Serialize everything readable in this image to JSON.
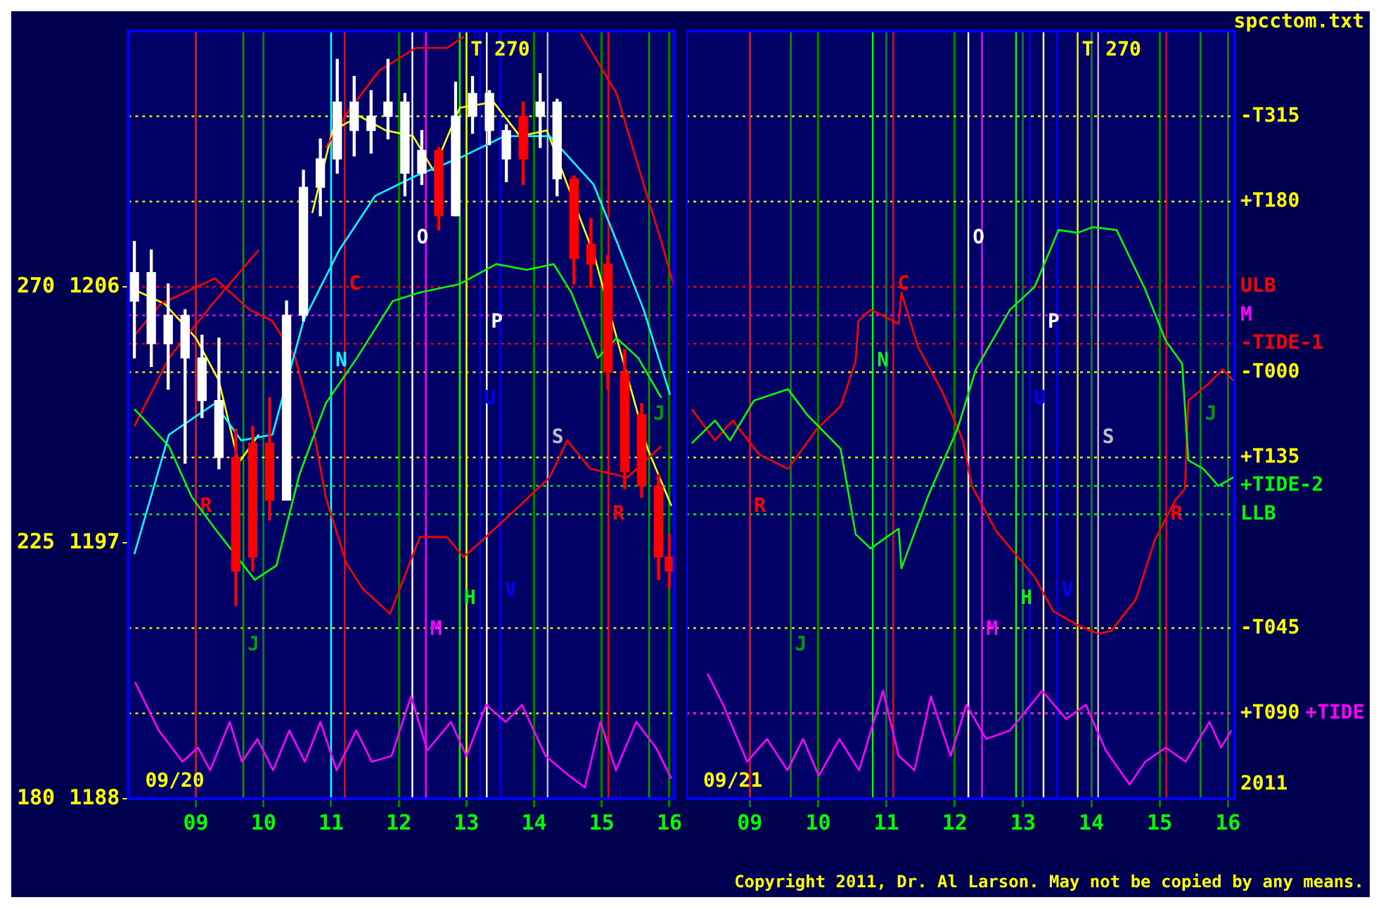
{
  "chart_data": [
    {
      "type": "candlestick",
      "x": [
        8.09,
        8.34,
        8.59,
        8.84,
        9.09,
        9.34,
        9.59,
        9.84,
        10.09,
        10.34,
        10.59,
        10.84,
        11.09,
        11.34,
        11.59,
        11.84,
        12.09,
        12.34,
        12.59,
        12.84,
        13.09,
        13.34,
        13.59,
        13.84,
        14.09,
        14.34,
        14.59,
        14.84,
        15.09,
        15.34,
        15.59,
        15.84,
        16.0
      ],
      "ohlc": [
        [
          1205.5,
          1207.6,
          1203.5,
          1206.5
        ],
        [
          1204.0,
          1207.3,
          1203.2,
          1206.5
        ],
        [
          1204.0,
          1206.1,
          1202.4,
          1205.0
        ],
        [
          1203.5,
          1205.2,
          1199.8,
          1205.0
        ],
        [
          1202.0,
          1204.3,
          1201.4,
          1203.5
        ],
        [
          1200.0,
          1204.2,
          1199.6,
          1202.0
        ],
        [
          1200.0,
          1201.0,
          1194.8,
          1196.0
        ],
        [
          1200.5,
          1201.1,
          1196.0,
          1196.5
        ],
        [
          1200.5,
          1202.1,
          1197.8,
          1198.5
        ],
        [
          1198.5,
          1205.5,
          1198.5,
          1205.0
        ],
        [
          1205.0,
          1210.1,
          1204.8,
          1209.5
        ],
        [
          1209.5,
          1211.2,
          1208.5,
          1210.5
        ],
        [
          1210.5,
          1214.0,
          1210.0,
          1212.5
        ],
        [
          1211.5,
          1213.4,
          1210.6,
          1212.5
        ],
        [
          1211.5,
          1212.9,
          1210.7,
          1212.0
        ],
        [
          1212.0,
          1214.0,
          1211.2,
          1212.5
        ],
        [
          1210.0,
          1212.8,
          1209.2,
          1212.5
        ],
        [
          1210.0,
          1211.5,
          1209.6,
          1210.8
        ],
        [
          1210.8,
          1210.9,
          1208.0,
          1208.5
        ],
        [
          1208.5,
          1213.2,
          1208.5,
          1212.0
        ],
        [
          1212.0,
          1213.4,
          1211.4,
          1212.8
        ],
        [
          1211.5,
          1212.9,
          1211.0,
          1212.8
        ],
        [
          1210.5,
          1211.7,
          1209.7,
          1211.5
        ],
        [
          1212.0,
          1212.5,
          1209.6,
          1210.5
        ],
        [
          1212.0,
          1213.5,
          1210.9,
          1212.5
        ],
        [
          1209.8,
          1212.6,
          1209.2,
          1212.5
        ],
        [
          1209.8,
          1209.9,
          1206.1,
          1207.0
        ],
        [
          1207.5,
          1208.4,
          1206.0,
          1206.8
        ],
        [
          1206.8,
          1207.1,
          1202.4,
          1203.0
        ],
        [
          1203.0,
          1203.8,
          1198.9,
          1199.5
        ],
        [
          1201.5,
          1201.9,
          1198.6,
          1199.0
        ],
        [
          1199.0,
          1199.4,
          1195.7,
          1196.5
        ],
        [
          1196.5,
          1197.3,
          1195.4,
          1196.0
        ]
      ],
      "colors": [
        "#ffffff",
        "#ffffff",
        "#ffffff",
        "#ffffff",
        "#ffffff",
        "#ffffff",
        "#ff0000",
        "#ff0000",
        "#ff0000",
        "#ffffff",
        "#ffffff",
        "#ffffff",
        "#ffffff",
        "#ffffff",
        "#ffffff",
        "#ffffff",
        "#ffffff",
        "#ffffff",
        "#ff0000",
        "#ffffff",
        "#ffffff",
        "#ffffff",
        "#ffffff",
        "#ff0000",
        "#ffffff",
        "#ffffff",
        "#ff0000",
        "#ff0000",
        "#ff0000",
        "#ff0000",
        "#ff0000",
        "#ff0000",
        "#ff0000"
      ],
      "series": [
        {
          "type": "line",
          "color": "#00ffff",
          "x": [
            8.09,
            8.6,
            9.28,
            9.67,
            10.13,
            10.59,
            11.12,
            11.65,
            12.25,
            12.96,
            13.56,
            14.23,
            14.88,
            15.22,
            15.62,
            16.01
          ],
          "values": [
            1196.6,
            1200.8,
            1201.9,
            1200.6,
            1200.8,
            1204.8,
            1207.3,
            1209.2,
            1209.9,
            1210.6,
            1211.3,
            1211.3,
            1209.6,
            1207.6,
            1205.2,
            1202.2
          ]
        },
        {
          "type": "line",
          "color": "#00ff00",
          "x": [
            8.09,
            8.6,
            8.94,
            9.28,
            9.87,
            10.19,
            10.53,
            10.92,
            11.38,
            11.91,
            12.31,
            12.9,
            13.44,
            13.89,
            14.29,
            14.55,
            14.94,
            15.22,
            15.54,
            15.88
          ],
          "values": [
            1201.7,
            1200.4,
            1198.6,
            1197.5,
            1195.7,
            1196.2,
            1199.4,
            1201.9,
            1203.5,
            1205.5,
            1205.8,
            1206.1,
            1206.8,
            1206.6,
            1206.8,
            1205.8,
            1203.5,
            1204.2,
            1203.5,
            1202.1
          ]
        },
        {
          "type": "line",
          "color": "#ff0000",
          "x": [
            8.09,
            8.6,
            9.28,
            9.93,
            10.59,
            10.92,
            11.26,
            11.71,
            12.25,
            12.71,
            12.96,
            13.5,
            14.69,
            15.22,
            15.62,
            15.88,
            16.07
          ],
          "values": [
            1201.1,
            1203.5,
            1205.5,
            1207.3,
            null,
            1210.9,
            1212.2,
            1213.6,
            1214.4,
            1214.4,
            1214.8,
            null,
            1214.9,
            1212.8,
            1209.6,
            1207.6,
            1206.0
          ]
        },
        {
          "type": "line",
          "color": "#ff0000",
          "x": [
            8.09,
            8.48,
            9.28,
            9.79,
            10.13,
            10.47,
            10.72,
            10.92,
            11.22,
            11.46,
            11.87,
            12.31,
            12.71,
            12.96,
            13.56,
            14.23,
            14.49,
            14.83,
            15.38,
            15.88
          ],
          "values": [
            1204.3,
            1205.4,
            1206.3,
            1205.2,
            1204.8,
            1203.5,
            1201.2,
            1198.6,
            1196.3,
            1195.4,
            1194.5,
            1197.2,
            1197.2,
            1196.5,
            1197.8,
            1199.3,
            1200.6,
            1199.6,
            1199.3,
            1200.4
          ]
        },
        {
          "type": "line",
          "color": "#ffff00",
          "x": [
            8.09,
            8.54,
            9.0,
            9.34,
            9.63,
            9.93,
            10.33,
            10.72,
            11.02,
            11.42,
            11.81,
            12.21,
            12.51,
            12.9,
            13.4,
            13.79,
            14.19,
            14.49,
            14.89,
            15.28,
            15.68,
            16.03
          ],
          "values": [
            1205.9,
            1205.4,
            1204.2,
            1202.7,
            1199.8,
            1200.8,
            null,
            1208.6,
            1211.5,
            1212.0,
            1211.5,
            1211.3,
            1210.1,
            1212.3,
            1212.5,
            1211.3,
            1211.5,
            1209.6,
            1207.1,
            1203.7,
            1200.3,
            1198.3
          ]
        },
        {
          "type": "line",
          "color": "#ff00ff",
          "x": [
            8.1,
            8.45,
            8.8,
            9.03,
            9.21,
            9.5,
            9.68,
            9.91,
            10.14,
            10.38,
            10.61,
            10.84,
            11.08,
            11.37,
            11.6,
            11.89,
            12.18,
            12.42,
            12.77,
            13.0,
            13.29,
            13.58,
            13.82,
            14.17,
            14.52,
            14.75,
            14.98,
            15.21,
            15.51,
            15.8,
            16.03
          ],
          "values": [
            1192.1,
            1190.4,
            1189.3,
            1189.8,
            1189.0,
            1190.7,
            1189.3,
            1190.1,
            1189.0,
            1190.4,
            1189.3,
            1190.7,
            1189.0,
            1190.4,
            1189.3,
            1189.5,
            1191.6,
            1189.7,
            1190.7,
            1189.5,
            1191.3,
            1190.7,
            1191.3,
            1189.5,
            1188.8,
            1188.4,
            1190.7,
            1189.0,
            1190.7,
            1189.8,
            1188.7
          ]
        }
      ],
      "xlim": [
        8,
        16.07
      ],
      "xticks": [
        {
          "value": 9,
          "label": "09"
        },
        10,
        11,
        12,
        13,
        14,
        15,
        16
      ],
      "ylim": [
        1188,
        1215
      ],
      "yticks": [
        1188,
        1197,
        1206
      ],
      "y2lim": [
        180,
        315
      ],
      "y2ticks": [
        180,
        225,
        270
      ],
      "grid": "x",
      "ref_lines": [
        {
          "axis": "y",
          "value": 1212,
          "color": "#ffff00",
          "line_style": "dotted"
        },
        {
          "axis": "y",
          "value": 1209,
          "color": "#ffff00",
          "line_style": "dotted"
        },
        {
          "axis": "y",
          "value": 1206,
          "color": "#ff0000",
          "line_style": "dotted"
        },
        {
          "axis": "y",
          "value": 1205,
          "color": "#ff00ff",
          "line_style": "dotted"
        },
        {
          "axis": "y",
          "value": 1204,
          "color": "#ff0000",
          "line_style": "dotted"
        },
        {
          "axis": "y",
          "value": 1203,
          "color": "#ffff00",
          "line_style": "dotted"
        },
        {
          "axis": "y",
          "value": 1200,
          "color": "#ffff00",
          "line_style": "dotted"
        },
        {
          "axis": "y",
          "value": 1199,
          "color": "#00ff00",
          "line_style": "dotted"
        },
        {
          "axis": "y",
          "value": 1198,
          "color": "#00ff00",
          "line_style": "dotted"
        },
        {
          "axis": "y",
          "value": 1194,
          "color": "#ffff00",
          "line_style": "dotted"
        },
        {
          "axis": "y",
          "value": 1191,
          "color": "#ffff00",
          "line_style": "dotted"
        },
        {
          "axis": "x",
          "value": 9.0,
          "label": "R",
          "color": "#ff0000"
        },
        {
          "axis": "x",
          "value": 9.7,
          "label": "J",
          "color": "#00a000"
        },
        {
          "axis": "x",
          "value": 11.0,
          "label": "N",
          "color": "#00ffff"
        },
        {
          "axis": "x",
          "value": 11.2,
          "label": "C",
          "color": "#ff0000"
        },
        {
          "axis": "x",
          "value": 12.2,
          "label": "O",
          "color": "#ffffff"
        },
        {
          "axis": "x",
          "value": 12.4,
          "label": "M",
          "color": "#ff00ff"
        },
        {
          "axis": "x",
          "value": 12.9,
          "label": "H",
          "color": "#00ff00"
        },
        {
          "axis": "x",
          "value": 13.0,
          "label": "T 270",
          "color": "#ffff00"
        },
        {
          "axis": "x",
          "value": 13.2,
          "label": "U",
          "color": "#0000ff"
        },
        {
          "axis": "x",
          "value": 13.3,
          "label": "P",
          "color": "#ffffff"
        },
        {
          "axis": "x",
          "value": 13.5,
          "label": "V",
          "color": "#0000ff"
        },
        {
          "axis": "x",
          "value": 14.2,
          "label": "S",
          "color": "#c0c0c0"
        },
        {
          "axis": "x",
          "value": 15.1,
          "label": "R",
          "color": "#ff0000"
        },
        {
          "axis": "x",
          "value": 15.7,
          "label": "J",
          "color": "#00a000"
        }
      ],
      "annotations": [
        "09/20"
      ]
    },
    {
      "type": "line",
      "series": [
        {
          "color": "#00ff00",
          "x": [
            8.15,
            8.49,
            8.71,
            9.06,
            9.56,
            9.84,
            10.33,
            10.55,
            10.77,
            11.18,
            11.22,
            11.62,
            12.04,
            12.31,
            12.81,
            13.17,
            13.52,
            13.8,
            14.02,
            14.37,
            14.79,
            15.09,
            15.33,
            15.42,
            15.64,
            15.86,
            16.08
          ],
          "values": [
            1200.5,
            1201.3,
            1200.6,
            1202.0,
            1202.4,
            1201.5,
            1200.3,
            1197.3,
            1196.8,
            1197.5,
            1196.1,
            1198.7,
            1201.0,
            1203.1,
            1205.2,
            1206.0,
            1208.0,
            1207.9,
            1208.1,
            1208.0,
            1205.9,
            1204.1,
            1203.3,
            1199.9,
            1199.6,
            1199.0,
            1199.3
          ]
        },
        {
          "color": "#ff0000",
          "x": [
            8.15,
            8.49,
            8.75,
            9.14,
            9.56,
            9.98,
            10.33,
            10.55,
            10.59,
            10.77,
            11.18,
            11.22,
            11.46,
            11.82,
            12.12,
            12.25,
            12.61,
            12.89,
            13.17,
            13.44,
            13.8,
            14.1,
            14.29,
            14.65,
            14.93,
            15.23,
            15.37,
            15.42,
            15.72,
            15.92,
            16.08
          ],
          "values": [
            1201.7,
            1200.6,
            1201.3,
            1200.1,
            1199.6,
            1201.0,
            1201.8,
            1203.4,
            1204.8,
            1205.2,
            1204.7,
            1205.8,
            1203.9,
            1202.3,
            1200.6,
            1199.0,
            1197.4,
            1196.6,
            1195.8,
            1194.6,
            1194.1,
            1193.8,
            1193.9,
            1195.0,
            1197.1,
            1198.5,
            1198.9,
            1202.0,
            1202.6,
            1203.1,
            1202.7
          ]
        },
        {
          "color": "#ff00ff",
          "x": [
            8.38,
            8.61,
            8.96,
            9.25,
            9.55,
            9.78,
            10.01,
            10.31,
            10.6,
            10.95,
            11.18,
            11.41,
            11.65,
            11.94,
            12.17,
            12.46,
            12.81,
            13.28,
            13.63,
            13.92,
            14.21,
            14.56,
            14.79,
            15.09,
            15.38,
            15.73,
            15.9,
            16.05
          ],
          "values": [
            1192.4,
            1191.3,
            1189.3,
            1190.1,
            1189.0,
            1190.1,
            1188.8,
            1190.1,
            1189.0,
            1191.8,
            1189.5,
            1189.0,
            1191.6,
            1189.5,
            1191.3,
            1190.1,
            1190.4,
            1191.8,
            1190.8,
            1191.3,
            1189.7,
            1188.5,
            1189.3,
            1189.8,
            1189.3,
            1190.7,
            1189.8,
            1190.4
          ]
        }
      ],
      "xlim": [
        8.07,
        16.1
      ],
      "xticks": [
        {
          "value": 9,
          "label": "09"
        },
        10,
        11,
        12,
        13,
        14,
        15,
        16
      ],
      "ylim": [
        1188,
        1215
      ],
      "tick_labels": "x",
      "grid": "x",
      "ref_lines": [
        {
          "axis": "y",
          "value": 1212,
          "label": "-T315",
          "color": "#ffff00",
          "line_style": "dotted"
        },
        {
          "axis": "y",
          "value": 1209,
          "label": "+T180",
          "color": "#ffff00",
          "line_style": "dotted"
        },
        {
          "axis": "y",
          "value": 1206,
          "label": "ULB",
          "color": "#ff0000",
          "line_style": "dotted"
        },
        {
          "axis": "y",
          "value": 1205,
          "label": "M",
          "color": "#ff00ff",
          "line_style": "dotted"
        },
        {
          "axis": "y",
          "value": 1204,
          "label": "-TIDE-1",
          "color": "#ff0000",
          "line_style": "dotted"
        },
        {
          "axis": "y",
          "value": 1203,
          "label": "-T000",
          "color": "#ffff00",
          "line_style": "dotted"
        },
        {
          "axis": "y",
          "value": 1200,
          "label": "+T135",
          "color": "#ffff00",
          "line_style": "dotted"
        },
        {
          "axis": "y",
          "value": 1199,
          "label": "+TIDE-2",
          "color": "#00ff00",
          "line_style": "dotted"
        },
        {
          "axis": "y",
          "value": 1198,
          "label": "LLB",
          "color": "#00ff00",
          "line_style": "dotted"
        },
        {
          "axis": "y",
          "value": 1194,
          "label": "-T045",
          "color": "#ffff00",
          "line_style": "dotted"
        },
        {
          "axis": "y",
          "value": 1191,
          "label": "+T090",
          "color": "#ffff00",
          "line_style": "dotted"
        },
        {
          "axis": "y",
          "value": 1191,
          "label": "+TIDE",
          "color": "#ff00ff",
          "line_style": "dotted"
        },
        {
          "axis": "x",
          "value": 9.0,
          "label": "R",
          "color": "#ff0000"
        },
        {
          "axis": "x",
          "value": 9.6,
          "label": "J",
          "color": "#00a000"
        },
        {
          "axis": "x",
          "value": 10.8,
          "label": "N",
          "color": "#00ff00"
        },
        {
          "axis": "x",
          "value": 11.1,
          "label": "C",
          "color": "#ff0000"
        },
        {
          "axis": "x",
          "value": 12.2,
          "label": "O",
          "color": "#ffffff"
        },
        {
          "axis": "x",
          "value": 12.4,
          "label": "M",
          "color": "#ff00ff"
        },
        {
          "axis": "x",
          "value": 12.9,
          "label": "H",
          "color": "#00ff00"
        },
        {
          "axis": "x",
          "value": 13.8,
          "label": "T 270",
          "color": "#ffff00"
        },
        {
          "axis": "x",
          "value": 13.1,
          "label": "U",
          "color": "#0000ff"
        },
        {
          "axis": "x",
          "value": 13.3,
          "label": "P",
          "color": "#ffffff"
        },
        {
          "axis": "x",
          "value": 13.5,
          "label": "V",
          "color": "#0000ff"
        },
        {
          "axis": "x",
          "value": 14.1,
          "label": "S",
          "color": "#c0c0c0"
        },
        {
          "axis": "x",
          "value": 15.1,
          "label": "R",
          "color": "#ff0000"
        },
        {
          "axis": "x",
          "value": 15.6,
          "label": "J",
          "color": "#00a000"
        }
      ],
      "annotations": [
        "09/21",
        "spcctom.txt",
        "2011",
        "Copyright 2011, Dr. Al Larson. May not be copied by any means."
      ]
    }
  ]
}
